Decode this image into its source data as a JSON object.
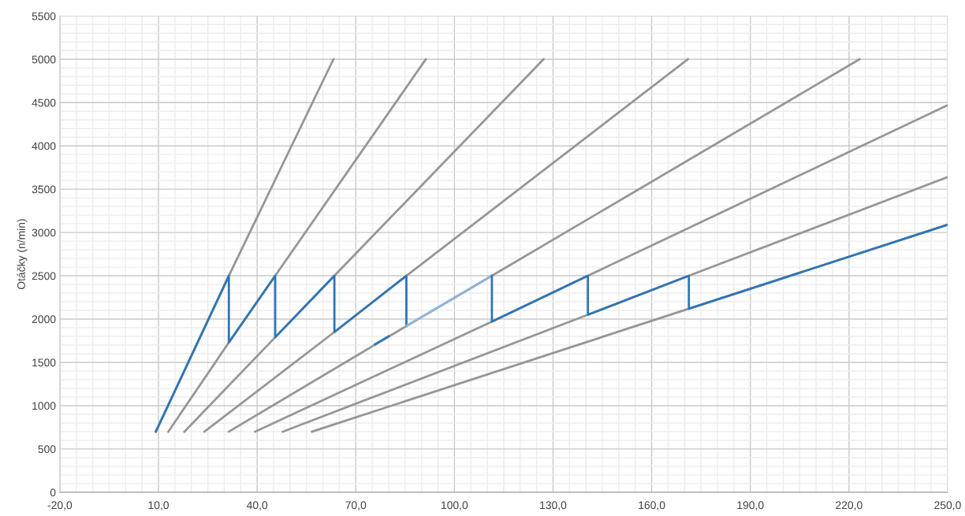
{
  "chart_data": {
    "type": "line",
    "ylabel": "Otáčky (n/min)",
    "xlim": [
      -20,
      250
    ],
    "ylim": [
      0,
      5500
    ],
    "xticks": [
      {
        "value": -20,
        "label": "-20,0"
      },
      {
        "value": 10,
        "label": "10,0"
      },
      {
        "value": 40,
        "label": "40,0"
      },
      {
        "value": 70,
        "label": "70,0"
      },
      {
        "value": 100,
        "label": "100,0"
      },
      {
        "value": 130,
        "label": "130,0"
      },
      {
        "value": 160,
        "label": "160,0"
      },
      {
        "value": 190,
        "label": "190,0"
      },
      {
        "value": 220,
        "label": "220,0"
      },
      {
        "value": 250,
        "label": "250,0"
      }
    ],
    "yticks": [
      0,
      500,
      1000,
      1500,
      2000,
      2500,
      3000,
      3500,
      4000,
      4500,
      5000,
      5500
    ],
    "grid": true,
    "marker": "none",
    "line_style": "solid",
    "series": [
      {
        "color": "#969696",
        "x": [
          9.2,
          31.4,
          63.2
        ],
        "values": [
          700,
          2500,
          5000
        ]
      },
      {
        "color": "#969696",
        "x": [
          13.0,
          31.4,
          45.5,
          91.3
        ],
        "values": [
          700,
          1730,
          2500,
          5000
        ]
      },
      {
        "color": "#969696",
        "x": [
          17.9,
          45.5,
          63.5,
          127.1
        ],
        "values": [
          700,
          1790,
          2500,
          5000
        ]
      },
      {
        "color": "#969696",
        "x": [
          24.0,
          63.5,
          85.4,
          171.0
        ],
        "values": [
          700,
          1850,
          2500,
          5000
        ]
      },
      {
        "color": "#969696",
        "x": [
          31.4,
          85.4,
          111.4,
          223.2
        ],
        "values": [
          700,
          1920,
          2500,
          5000
        ]
      },
      {
        "color": "#969696",
        "x": [
          39.4,
          111.4,
          140.6,
          250.0
        ],
        "values": [
          700,
          1970,
          2500,
          4470
        ]
      },
      {
        "color": "#969696",
        "x": [
          47.8,
          140.6,
          171.3,
          250.0
        ],
        "values": [
          700,
          2050,
          2500,
          3640
        ]
      },
      {
        "color": "#969696",
        "x": [
          56.7,
          171.3,
          250.0
        ],
        "values": [
          700,
          2120,
          3090
        ]
      },
      {
        "color": "#2e75b6",
        "x": [
          9.2,
          31.4,
          31.4,
          45.5,
          45.5,
          63.5,
          63.5,
          85.4,
          85.4
        ],
        "values": [
          700,
          2500,
          1730,
          2500,
          1790,
          2500,
          1850,
          2500,
          1920
        ]
      },
      {
        "color": "#8fb4d9",
        "x": [
          85.4,
          111.4
        ],
        "values": [
          1920,
          2500
        ]
      },
      {
        "color": "#2e75b6",
        "x": [
          111.4,
          111.4,
          140.6,
          140.6,
          171.3,
          171.3,
          250.0
        ],
        "values": [
          2500,
          1970,
          2500,
          2050,
          2500,
          2120,
          3090
        ]
      },
      {
        "color": "#2e75b6",
        "x": [
          75.9,
          80.0
        ],
        "values": [
          1710,
          1800
        ]
      }
    ]
  }
}
